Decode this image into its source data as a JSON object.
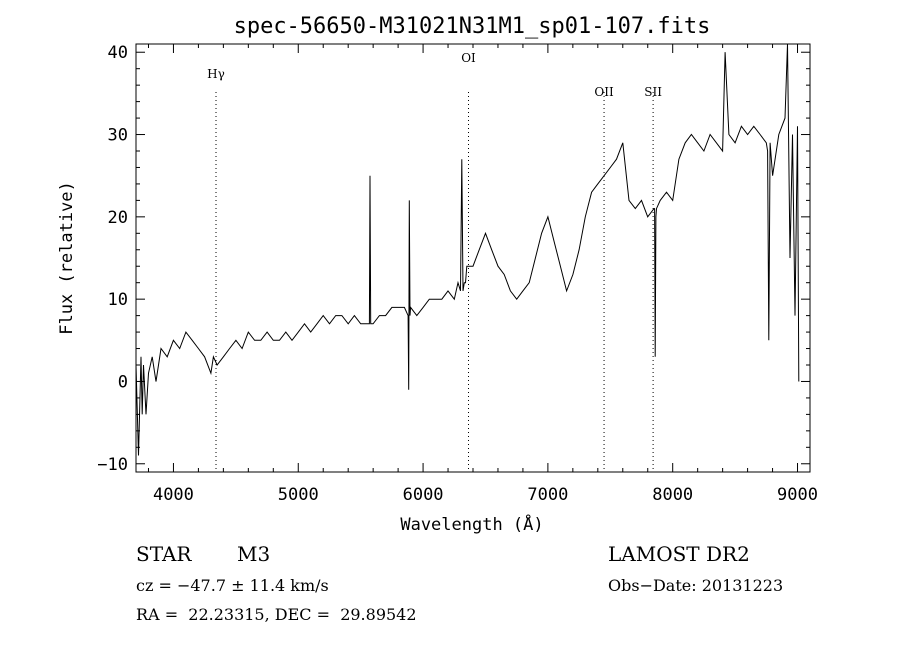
{
  "chart_data": {
    "type": "line",
    "title": "spec-56650-M31021N31M1_sp01-107.fits",
    "xlabel": "Wavelength (Å)",
    "ylabel": "Flux (relative)",
    "xlim": [
      3700,
      9100
    ],
    "ylim": [
      -11,
      41
    ],
    "xticks": [
      4000,
      5000,
      6000,
      7000,
      8000,
      9000
    ],
    "yticks": [
      -10,
      0,
      10,
      20,
      30,
      40
    ],
    "line_color": "#000000",
    "grid": false,
    "lines": [
      {
        "label": "Hγ",
        "wavelength": 4341
      },
      {
        "label": "OI",
        "wavelength": 6364
      },
      {
        "label": "OII",
        "wavelength": 7450
      },
      {
        "label": "SII",
        "wavelength": 7843
      }
    ],
    "series": [
      {
        "x": [
          3700,
          3720,
          3740,
          3750,
          3760,
          3780,
          3800,
          3830,
          3860,
          3900,
          3950,
          4000,
          4050,
          4100,
          4150,
          4200,
          4250,
          4300,
          4320,
          4350,
          4400,
          4450,
          4500,
          4550,
          4600,
          4650,
          4700,
          4750,
          4800,
          4850,
          4900,
          4950,
          5000,
          5050,
          5100,
          5150,
          5200,
          5250,
          5300,
          5350,
          5400,
          5450,
          5500,
          5550,
          5570,
          5575,
          5580,
          5600,
          5650,
          5700,
          5750,
          5800,
          5850,
          5880,
          5885,
          5890,
          5895,
          5900,
          5950,
          6000,
          6050,
          6100,
          6150,
          6200,
          6250,
          6280,
          6300,
          6310,
          6320,
          6330,
          6340,
          6350,
          6400,
          6450,
          6500,
          6550,
          6600,
          6650,
          6700,
          6750,
          6800,
          6850,
          6900,
          6950,
          7000,
          7050,
          7100,
          7150,
          7200,
          7250,
          7300,
          7350,
          7400,
          7450,
          7500,
          7550,
          7600,
          7650,
          7700,
          7750,
          7800,
          7850,
          7855,
          7860,
          7865,
          7870,
          7900,
          7950,
          8000,
          8050,
          8100,
          8150,
          8200,
          8250,
          8300,
          8350,
          8400,
          8420,
          8450,
          8500,
          8550,
          8600,
          8650,
          8700,
          8750,
          8760,
          8770,
          8780,
          8800,
          8850,
          8900,
          8920,
          8940,
          8960,
          8980,
          9000,
          9010
        ],
        "y": [
          2,
          -9,
          3,
          -4,
          2,
          -4,
          1,
          3,
          0,
          4,
          3,
          5,
          4,
          6,
          5,
          4,
          3,
          1,
          3,
          2,
          3,
          4,
          5,
          4,
          6,
          5,
          5,
          6,
          5,
          5,
          6,
          5,
          6,
          7,
          6,
          7,
          8,
          7,
          8,
          8,
          7,
          8,
          7,
          7,
          7,
          25,
          7,
          7,
          8,
          8,
          9,
          9,
          9,
          8,
          -1,
          22,
          8,
          9,
          8,
          9,
          10,
          10,
          10,
          11,
          10,
          12,
          11,
          27,
          11,
          12,
          12,
          14,
          14,
          16,
          18,
          16,
          14,
          13,
          11,
          10,
          11,
          12,
          15,
          18,
          20,
          17,
          14,
          11,
          13,
          16,
          20,
          23,
          24,
          25,
          26,
          27,
          29,
          22,
          21,
          22,
          20,
          21,
          21,
          3,
          20,
          21,
          22,
          23,
          22,
          27,
          29,
          30,
          29,
          28,
          30,
          29,
          28,
          40,
          30,
          29,
          31,
          30,
          31,
          30,
          29,
          28,
          5,
          29,
          25,
          30,
          32,
          42,
          15,
          30,
          8,
          31,
          0
        ]
      }
    ]
  },
  "info": {
    "object_class": "STAR",
    "subclass": "M3",
    "cz": "cz = −47.7 ± 11.4 km/s",
    "coords": "RA =  22.23315, DEC =  29.89542",
    "survey": "LAMOST DR2",
    "obs_date": "Obs−Date: 20131223"
  }
}
